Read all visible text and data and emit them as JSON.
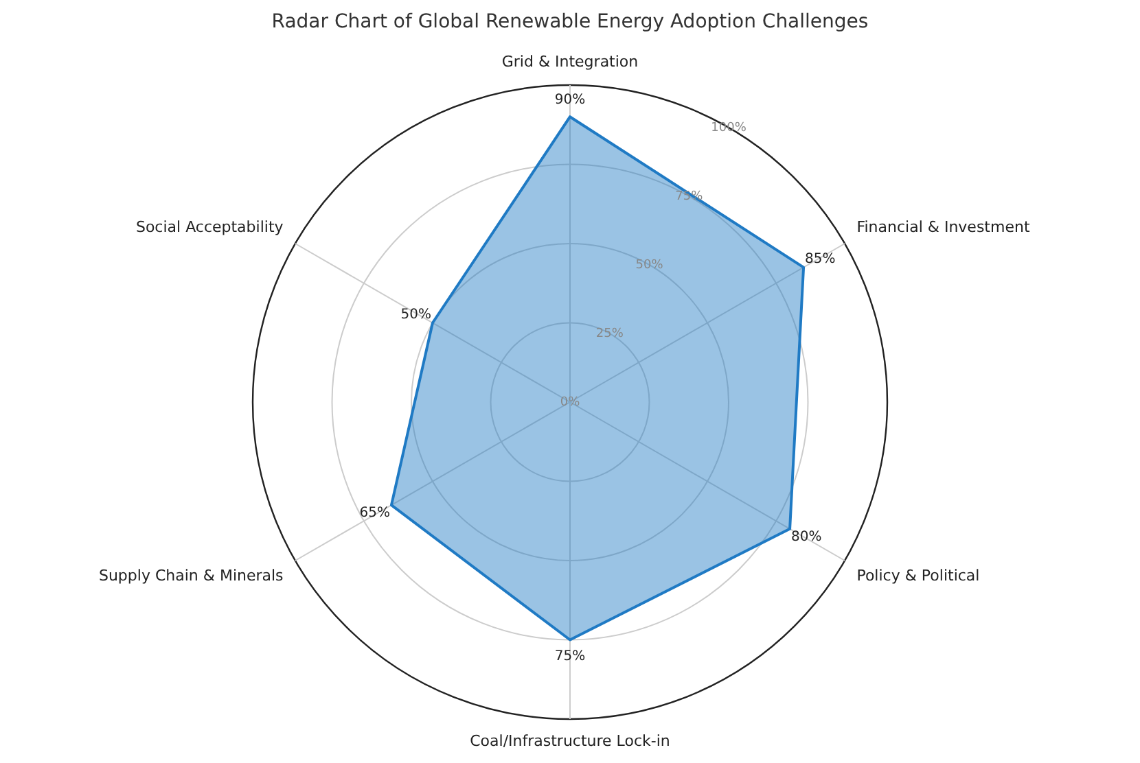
{
  "chart_data": {
    "type": "radar",
    "title": "Radar Chart of Global Renewable Energy Adoption Challenges",
    "categories": [
      "Grid & Integration",
      "Financial & Investment",
      "Policy & Political",
      "Coal/Infrastructure Lock-in",
      "Supply Chain & Minerals",
      "Social Acceptability"
    ],
    "series": [
      {
        "color": "#1f7ac4",
        "values": [
          90,
          85,
          80,
          75,
          65,
          50
        ],
        "value_labels": [
          "90%",
          "85%",
          "80%",
          "75%",
          "65%",
          "50%"
        ]
      }
    ],
    "ylim": [
      0,
      100
    ],
    "yticks": [
      {
        "value": 0,
        "label": "0%"
      },
      {
        "value": 25,
        "label": "25%"
      },
      {
        "value": 50,
        "label": "50%"
      },
      {
        "value": 75,
        "label": "75%"
      },
      {
        "value": 100,
        "label": "100%"
      }
    ],
    "grid": true,
    "legend": false,
    "marker": "none",
    "line_style": "solid"
  }
}
